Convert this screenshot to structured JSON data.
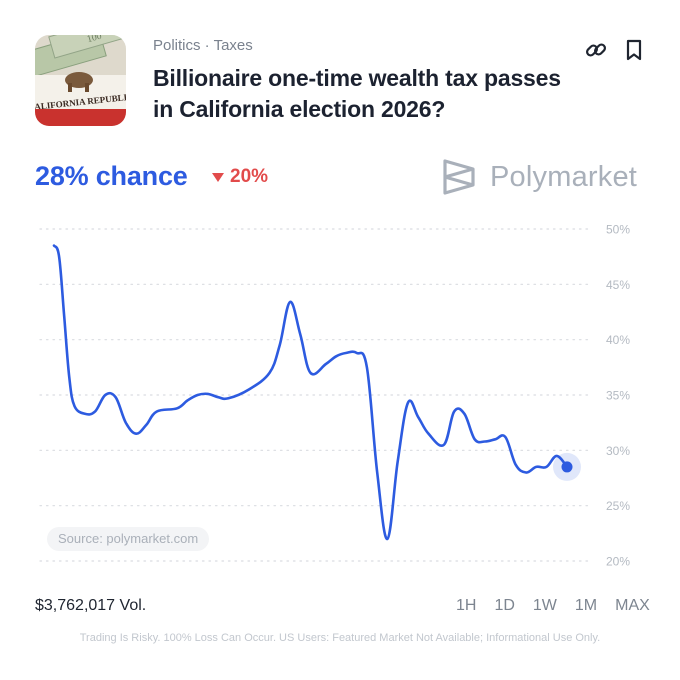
{
  "market": {
    "category": "Politics · Taxes",
    "title": "Billionaire one-time wealth tax passes in California election 2026?",
    "thumbnail_text": "CALIFORNIA REPUBLIC"
  },
  "header_actions": {
    "link_icon": "link-icon",
    "bookmark_icon": "bookmark-icon"
  },
  "odds": {
    "chance_text": "28% chance",
    "change_text": "20%",
    "change_direction": "down"
  },
  "brand": {
    "name": "Polymarket"
  },
  "colors": {
    "line": "#2d5be0",
    "accent": "#2d5be0",
    "negative": "#e24b4b",
    "grid": "#d9dce1"
  },
  "chart_data": {
    "type": "line",
    "ylim": [
      20,
      50
    ],
    "yticks": [
      "50%",
      "45%",
      "40%",
      "35%",
      "30%",
      "25%",
      "20%"
    ],
    "grid": true,
    "x": [
      0,
      1,
      2,
      3,
      4,
      6,
      8,
      10,
      12,
      14,
      16,
      18,
      20,
      24,
      26,
      28,
      30,
      32,
      34,
      38,
      42,
      44,
      46,
      48,
      50,
      53,
      55,
      57,
      59,
      61,
      63,
      65,
      67,
      69,
      71,
      73,
      76,
      78,
      80,
      82,
      84,
      86,
      88,
      90,
      92,
      94,
      96,
      98,
      100
    ],
    "values": [
      48.5,
      47.5,
      42,
      36.5,
      34,
      33.3,
      33.5,
      35,
      34.8,
      32.5,
      31.5,
      32.3,
      33.5,
      33.8,
      34.5,
      35,
      35.1,
      34.8,
      34.7,
      35.5,
      37,
      39.5,
      43.4,
      40.5,
      37,
      37.8,
      38.5,
      38.8,
      38.8,
      37.5,
      28,
      22,
      29,
      34.3,
      33,
      31.5,
      30.5,
      33.5,
      33.3,
      31,
      30.8,
      31,
      31.2,
      28.7,
      28,
      28.5,
      28.5,
      29.5,
      28.5
    ],
    "source_label": "Source: polymarket.com"
  },
  "footer": {
    "volume": "$3,762,017 Vol.",
    "ranges": [
      "1H",
      "1D",
      "1W",
      "1M",
      "MAX"
    ],
    "disclaimer": "Trading Is Risky. 100% Loss Can Occur. US Users: Featured Market Not Available; Informational Use Only."
  }
}
